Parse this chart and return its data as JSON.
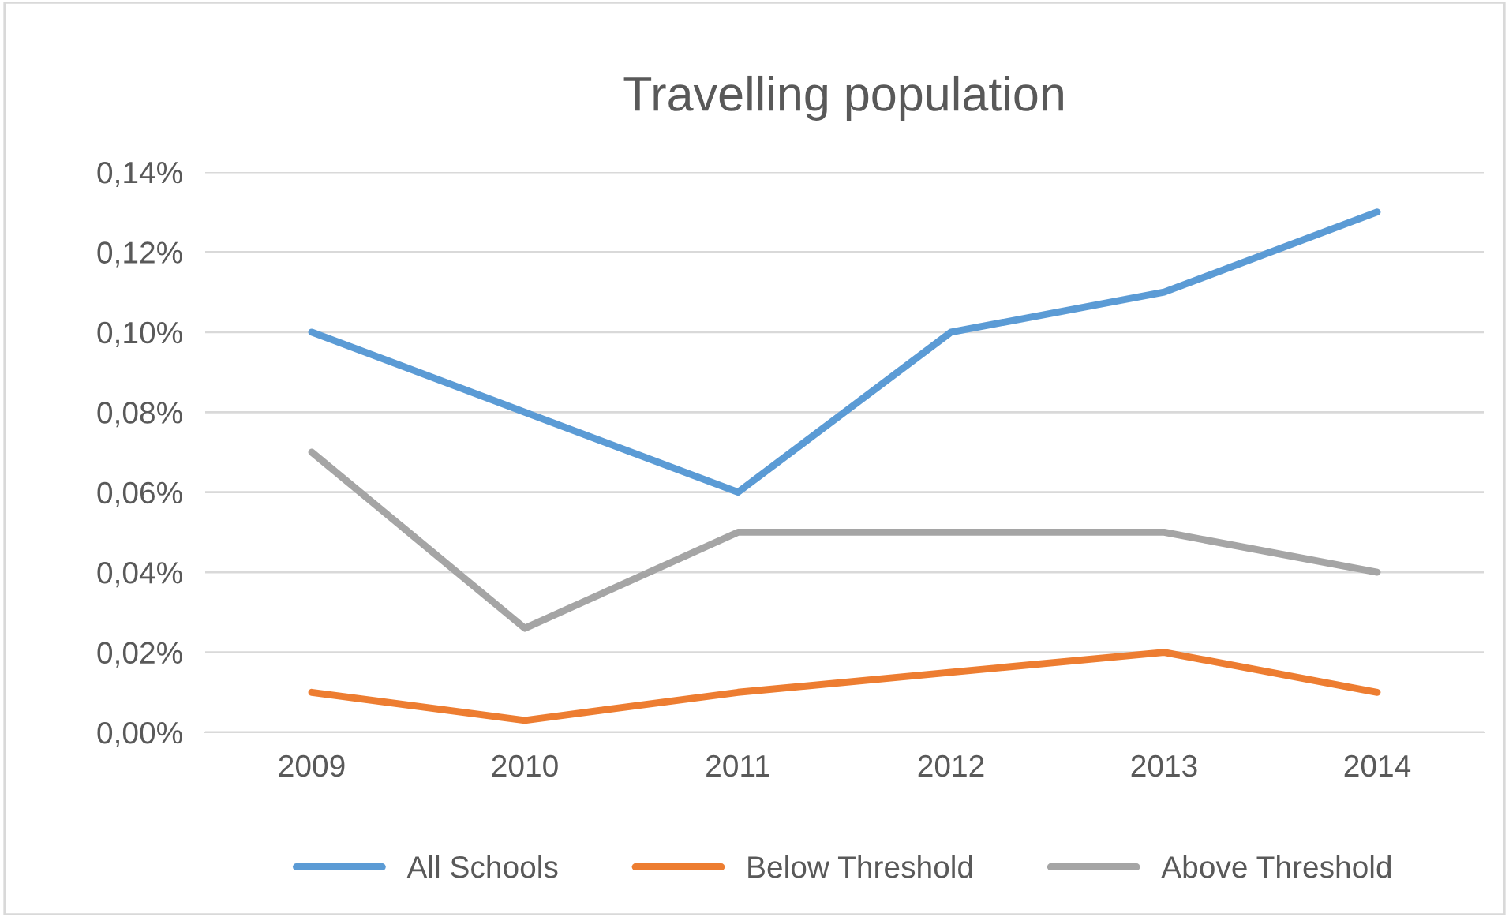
{
  "chart_data": {
    "type": "line",
    "title": "Travelling population",
    "categories": [
      "2009",
      "2010",
      "2011",
      "2012",
      "2013",
      "2014"
    ],
    "series": [
      {
        "name": "All Schools",
        "color": "#5b9bd5",
        "values": [
          0.1,
          0.08,
          0.06,
          0.1,
          0.11,
          0.13
        ]
      },
      {
        "name": "Below Threshold",
        "color": "#ed7d31",
        "values": [
          0.01,
          0.003,
          0.01,
          0.015,
          0.02,
          0.01
        ]
      },
      {
        "name": "Above Threshold",
        "color": "#a5a5a5",
        "values": [
          0.07,
          0.026,
          0.05,
          0.05,
          0.05,
          0.04
        ]
      }
    ],
    "ylim": [
      0,
      0.14
    ],
    "yticks": [
      {
        "value": 0,
        "label": "0,00%"
      },
      {
        "value": 0.02,
        "label": "0,02%"
      },
      {
        "value": 0.04,
        "label": "0,04%"
      },
      {
        "value": 0.06,
        "label": "0,06%"
      },
      {
        "value": 0.08,
        "label": "0,08%"
      },
      {
        "value": 0.1,
        "label": "0,10%"
      },
      {
        "value": 0.12,
        "label": "0,12%"
      },
      {
        "value": 0.14,
        "label": "0,14%"
      }
    ],
    "grid": "y",
    "legend": "bottom",
    "marker": "none",
    "line_style": "solid"
  }
}
